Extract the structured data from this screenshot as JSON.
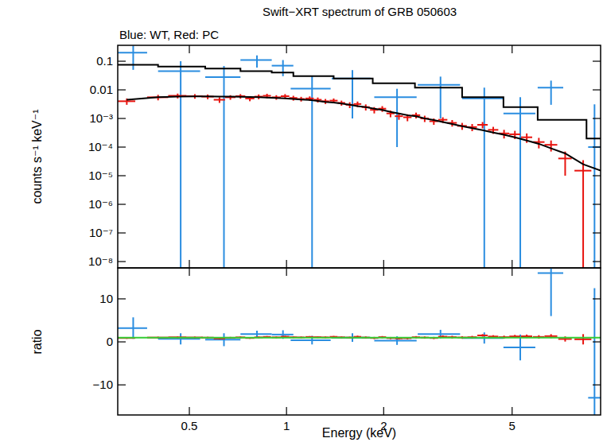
{
  "chart_data": [
    {
      "type": "scatter",
      "title": "Swift−XRT spectrum of GRB 050603",
      "subtitle": "Blue: WT, Red: PC",
      "y_label": "counts s⁻¹ keV⁻¹",
      "log": true,
      "tick_labels": "y",
      "xlim": [
        0.3,
        9.4
      ],
      "ylim": [
        6e-09,
        0.36
      ],
      "xticks": [
        0.5,
        1,
        2,
        5
      ],
      "yticks": [
        0.1,
        0.01,
        {
          "value": 0.001,
          "label": "10⁻³"
        },
        {
          "value": 0.0001,
          "label": "10⁻⁴"
        },
        {
          "value": 1e-05,
          "label": "10⁻⁵"
        },
        {
          "value": 1e-06,
          "label": "10⁻⁶"
        },
        {
          "value": 1e-07,
          "label": "10⁻⁷"
        },
        {
          "value": 1e-08,
          "label": "10⁻⁸"
        }
      ],
      "series": [
        {
          "color": "#2a8de0",
          "marker": "none",
          "x": [
            0.335,
            0.47,
            0.64,
            0.81,
            0.975,
            1.2,
            1.6,
            2.2,
            3.0,
            4.1,
            5.3,
            6.6,
            9.0
          ],
          "xerr": [
            0.035,
            0.07,
            0.08,
            0.09,
            0.075,
            0.17,
            0.22,
            0.33,
            0.45,
            0.6,
            0.6,
            0.6,
            0.4
          ],
          "values": [
            0.2,
            0.045,
            0.028,
            0.11,
            0.07,
            0.011,
            0.025,
            0.0055,
            0.015,
            0.005,
            0.0015,
            0.012,
            0.0001
          ],
          "error": [
            0.15,
            0.055,
            0.04,
            0.05,
            0.04,
            0.02,
            0.024,
            0.0054,
            0.014,
            0.007,
            0.004,
            0.009,
            0.003
          ]
        },
        {
          "color": "#e8140f",
          "marker": "none",
          "x": [
            0.32,
            0.4,
            0.46,
            0.52,
            0.57,
            0.62,
            0.67,
            0.72,
            0.77,
            0.82,
            0.87,
            0.93,
            0.99,
            1.05,
            1.11,
            1.18,
            1.25,
            1.32,
            1.4,
            1.48,
            1.57,
            1.66,
            1.76,
            1.87,
            1.98,
            2.1,
            2.23,
            2.37,
            2.52,
            2.68,
            2.86,
            3.05,
            3.26,
            3.5,
            3.76,
            4.05,
            4.37,
            4.72,
            5.1,
            5.55,
            6.05,
            6.6,
            7.3,
            8.3
          ],
          "xerr": [
            0.02,
            0.03,
            0.03,
            0.03,
            0.025,
            0.025,
            0.025,
            0.025,
            0.025,
            0.025,
            0.025,
            0.03,
            0.03,
            0.03,
            0.03,
            0.035,
            0.035,
            0.035,
            0.04,
            0.04,
            0.045,
            0.045,
            0.05,
            0.055,
            0.055,
            0.06,
            0.065,
            0.07,
            0.075,
            0.08,
            0.09,
            0.1,
            0.11,
            0.12,
            0.13,
            0.15,
            0.16,
            0.18,
            0.2,
            0.22,
            0.25,
            0.3,
            0.35,
            0.5
          ],
          "values": [
            0.004,
            0.0055,
            0.0062,
            0.006,
            0.0058,
            0.0045,
            0.0055,
            0.006,
            0.005,
            0.0058,
            0.0062,
            0.0055,
            0.006,
            0.0052,
            0.0048,
            0.005,
            0.0045,
            0.004,
            0.0042,
            0.0035,
            0.003,
            0.0032,
            0.0025,
            0.002,
            0.0022,
            0.0015,
            0.0012,
            0.0011,
            0.0013,
            0.001,
            0.0008,
            0.0009,
            0.0007,
            0.00055,
            0.0005,
            0.0006,
            0.0004,
            0.0003,
            0.00028,
            0.00022,
            0.00015,
            0.00012,
            4e-05,
            1.5e-05
          ],
          "error": [
            0.001,
            0.0012,
            0.0012,
            0.0011,
            0.0011,
            0.001,
            0.001,
            0.0011,
            0.001,
            0.0011,
            0.0011,
            0.001,
            0.0011,
            0.001,
            0.0009,
            0.0009,
            0.0009,
            0.0008,
            0.0008,
            0.0007,
            0.0007,
            0.0007,
            0.0006,
            0.0005,
            0.0005,
            0.0004,
            0.0003,
            0.0003,
            0.0003,
            0.00025,
            0.0002,
            0.0002,
            0.00018,
            0.00015,
            0.00014,
            0.00015,
            0.00011,
            0.0001,
            9e-05,
            8e-05,
            6e-05,
            5e-05,
            3e-05,
            2e-05
          ]
        },
        {
          "type": "step",
          "color": "#000000",
          "bins": [
            0.3,
            0.4,
            0.56,
            0.72,
            0.9,
            1.05,
            1.4,
            1.85,
            2.5,
            3.5,
            4.7,
            6.0,
            8.5,
            9.4
          ],
          "values": [
            0.075,
            0.065,
            0.055,
            0.045,
            0.04,
            0.03,
            0.025,
            0.017,
            0.012,
            0.0055,
            0.0025,
            0.0009,
            0.0002
          ]
        },
        {
          "type": "line",
          "color": "#000000",
          "x": [
            0.32,
            0.4,
            0.46,
            0.52,
            0.57,
            0.62,
            0.67,
            0.72,
            0.77,
            0.82,
            0.87,
            0.93,
            0.99,
            1.05,
            1.11,
            1.18,
            1.25,
            1.32,
            1.4,
            1.48,
            1.57,
            1.66,
            1.76,
            1.87,
            1.98,
            2.1,
            2.23,
            2.37,
            2.52,
            2.68,
            2.86,
            3.05,
            3.26,
            3.5,
            3.76,
            4.05,
            4.37,
            4.72,
            5.1,
            5.55,
            6.05,
            6.6,
            7.3,
            8.3,
            9.4
          ],
          "values": [
            0.0045,
            0.0055,
            0.0058,
            0.0059,
            0.0059,
            0.0058,
            0.0058,
            0.0057,
            0.0056,
            0.0055,
            0.0054,
            0.0052,
            0.005,
            0.0048,
            0.0046,
            0.0044,
            0.0041,
            0.0038,
            0.0036,
            0.0033,
            0.003,
            0.0027,
            0.0025,
            0.0022,
            0.002,
            0.0017,
            0.0015,
            0.0013,
            0.0012,
            0.001,
            0.00088,
            0.00075,
            0.00064,
            0.00054,
            0.00046,
            0.00039,
            0.00032,
            0.00027,
            0.00022,
            0.00017,
            0.00013,
            9e-05,
            6e-05,
            2.5e-05,
            1.5e-05
          ]
        }
      ]
    },
    {
      "type": "scatter",
      "x_label": "Energy (keV)",
      "y_label": "ratio",
      "log": "x",
      "xlim": [
        0.3,
        9.4
      ],
      "ylim": [
        -17,
        17.2
      ],
      "xticks": [
        0.5,
        1,
        2,
        5
      ],
      "yticks": [
        {
          "value": -10,
          "label": "−10"
        },
        0,
        10
      ],
      "series": [
        {
          "color": "#2a8de0",
          "marker": "none",
          "x": [
            0.335,
            0.47,
            0.64,
            0.81,
            0.975,
            1.2,
            1.6,
            2.2,
            3.0,
            4.1,
            5.3,
            6.6,
            9.0
          ],
          "xerr": [
            0.035,
            0.07,
            0.08,
            0.09,
            0.075,
            0.17,
            0.22,
            0.33,
            0.45,
            0.6,
            0.6,
            0.6,
            0.4
          ],
          "values": [
            3.2,
            0.7,
            0.5,
            1.8,
            1.7,
            0.4,
            1.0,
            0.3,
            1.8,
            0.9,
            -1.3,
            16,
            -13
          ],
          "error": [
            2.5,
            1.3,
            1.5,
            0.8,
            1.0,
            1.0,
            1.0,
            1.0,
            1.0,
            1.3,
            3.0,
            10,
            25.5
          ]
        },
        {
          "color": "#e8140f",
          "marker": "none",
          "x": [
            0.32,
            0.4,
            0.46,
            0.52,
            0.57,
            0.62,
            0.67,
            0.72,
            0.77,
            0.82,
            0.87,
            0.93,
            0.99,
            1.05,
            1.11,
            1.18,
            1.25,
            1.32,
            1.4,
            1.48,
            1.57,
            1.66,
            1.76,
            1.87,
            1.98,
            2.1,
            2.23,
            2.37,
            2.52,
            2.68,
            2.86,
            3.05,
            3.26,
            3.5,
            3.76,
            4.05,
            4.37,
            4.72,
            5.1,
            5.55,
            6.05,
            6.6,
            7.3,
            8.3
          ],
          "xerr": [
            0.02,
            0.03,
            0.03,
            0.03,
            0.025,
            0.025,
            0.025,
            0.025,
            0.025,
            0.025,
            0.025,
            0.03,
            0.03,
            0.03,
            0.03,
            0.035,
            0.035,
            0.035,
            0.04,
            0.04,
            0.045,
            0.045,
            0.05,
            0.055,
            0.055,
            0.06,
            0.065,
            0.07,
            0.075,
            0.08,
            0.09,
            0.1,
            0.11,
            0.12,
            0.13,
            0.15,
            0.16,
            0.18,
            0.2,
            0.22,
            0.25,
            0.3,
            0.35,
            0.5
          ],
          "values": [
            0.9,
            1.0,
            1.07,
            1.02,
            0.98,
            0.78,
            0.95,
            1.05,
            0.9,
            1.05,
            1.15,
            1.06,
            1.2,
            1.08,
            1.04,
            1.14,
            1.1,
            1.05,
            1.17,
            1.06,
            1.0,
            1.18,
            1.0,
            0.9,
            1.1,
            0.88,
            0.8,
            0.85,
            1.08,
            1.0,
            0.9,
            1.2,
            1.1,
            1.02,
            1.09,
            1.5,
            1.25,
            1.1,
            1.27,
            1.3,
            1.15,
            1.33,
            0.67,
            0.6
          ],
          "error": [
            0.2,
            0.2,
            0.2,
            0.2,
            0.2,
            0.2,
            0.2,
            0.2,
            0.2,
            0.2,
            0.2,
            0.2,
            0.2,
            0.2,
            0.2,
            0.2,
            0.2,
            0.2,
            0.2,
            0.2,
            0.2,
            0.25,
            0.25,
            0.25,
            0.25,
            0.25,
            0.25,
            0.25,
            0.25,
            0.25,
            0.25,
            0.3,
            0.3,
            0.3,
            0.3,
            0.3,
            0.3,
            0.35,
            0.35,
            0.4,
            0.4,
            0.45,
            0.6,
            1.2
          ]
        },
        {
          "type": "line",
          "color": "#33cc33",
          "x": [
            0.3,
            9.4
          ],
          "values": [
            1,
            1
          ]
        }
      ]
    }
  ]
}
